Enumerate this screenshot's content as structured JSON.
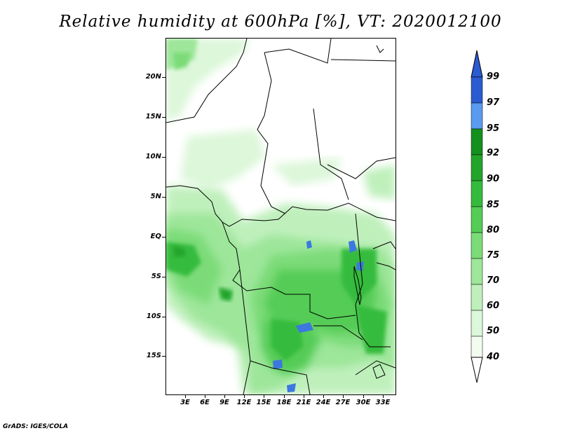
{
  "title": "Relative humidity at 600hPa [%], VT: 2020012100",
  "credit": "GrADS: IGES/COLA",
  "latitude_labels": [
    "20N",
    "15N",
    "10N",
    "5N",
    "EQ",
    "5S",
    "10S",
    "15S"
  ],
  "longitude_labels": [
    "3E",
    "6E",
    "9E",
    "12E",
    "15E",
    "18E",
    "21E",
    "24E",
    "27E",
    "30E",
    "33E"
  ],
  "colorbar": {
    "labels": [
      "99",
      "97",
      "95",
      "92",
      "90",
      "85",
      "80",
      "75",
      "70",
      "60",
      "50",
      "40"
    ],
    "colors": [
      "#2a5bd1",
      "#3c78e0",
      "#5a9af0",
      "#14901e",
      "#23a52b",
      "#35bb3c",
      "#55cc56",
      "#7bdb78",
      "#9de69a",
      "#bff0bc",
      "#dcf7d9",
      "#f2fdf0"
    ]
  }
}
